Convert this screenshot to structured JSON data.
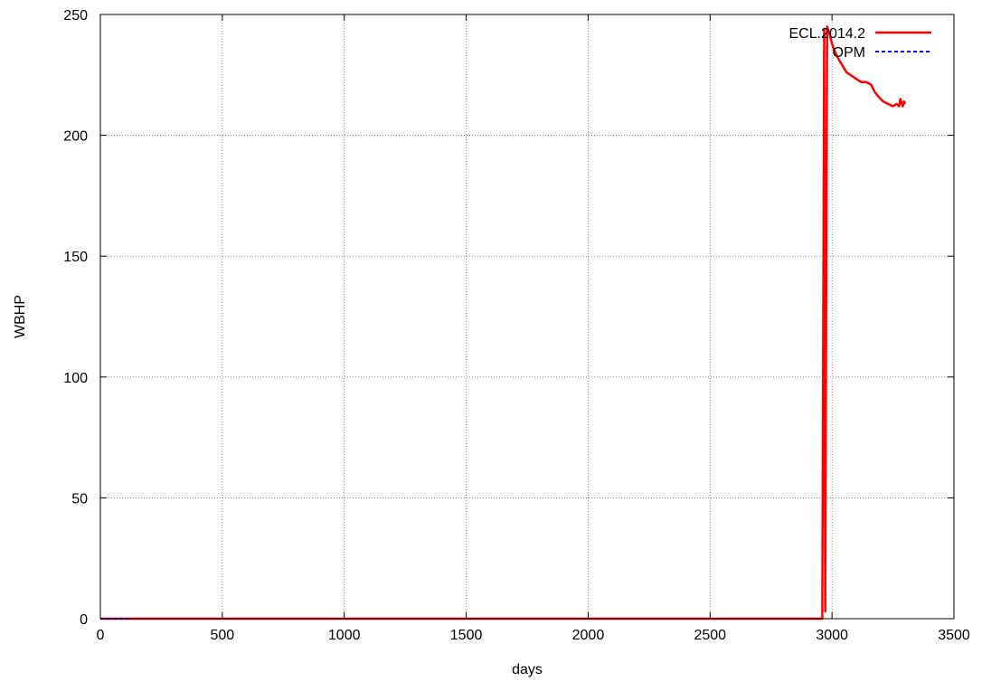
{
  "chart_data": {
    "type": "line",
    "title": "",
    "xlabel": "days",
    "ylabel": "WBHP",
    "xlim": [
      0,
      3500
    ],
    "ylim": [
      0,
      250
    ],
    "xticks": [
      0,
      500,
      1000,
      1500,
      2000,
      2500,
      3000,
      3500
    ],
    "yticks": [
      0,
      50,
      100,
      150,
      200,
      250
    ],
    "grid": true,
    "legend_position": "top-right",
    "series": [
      {
        "name": "ECL.2014.2",
        "color": "#ff0000",
        "dash": "solid",
        "x": [
          0,
          2960,
          2968,
          2972,
          2980,
          2990,
          3000,
          3010,
          3030,
          3060,
          3090,
          3120,
          3140,
          3160,
          3175,
          3190,
          3210,
          3230,
          3250,
          3265,
          3275,
          3280,
          3290,
          3295,
          3300
        ],
        "y": [
          0,
          0,
          244,
          3,
          245,
          242,
          238,
          235,
          231,
          226,
          224,
          222,
          222,
          221,
          218,
          216,
          214,
          213,
          212,
          213,
          212,
          215,
          212,
          214,
          213
        ]
      },
      {
        "name": "OPM",
        "color": "#0000ff",
        "dash": "dashed",
        "x": [
          0,
          130
        ],
        "y": [
          0,
          0
        ]
      }
    ]
  }
}
